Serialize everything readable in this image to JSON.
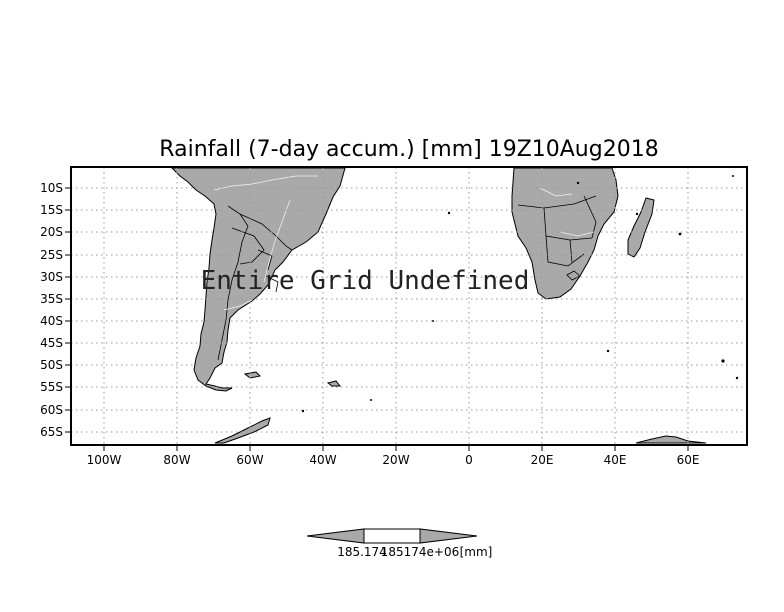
{
  "title": "Rainfall (7-day accum.) [mm] 19Z10Aug2018",
  "message": "Entire Grid Undefined",
  "lat_labels": [
    "10S",
    "15S",
    "20S",
    "25S",
    "30S",
    "35S",
    "40S",
    "45S",
    "50S",
    "55S",
    "60S",
    "65S"
  ],
  "lon_labels": [
    "100W",
    "80W",
    "60W",
    "40W",
    "20W",
    "0",
    "20E",
    "40E",
    "60E"
  ],
  "colorbar": {
    "left_value": "185.174",
    "right_value": "185174e+06",
    "unit": "[mm]"
  },
  "colors": {
    "land": "#a9a9a9",
    "border": "#000000",
    "background": "#ffffff",
    "grid": "#9a9a9a"
  }
}
